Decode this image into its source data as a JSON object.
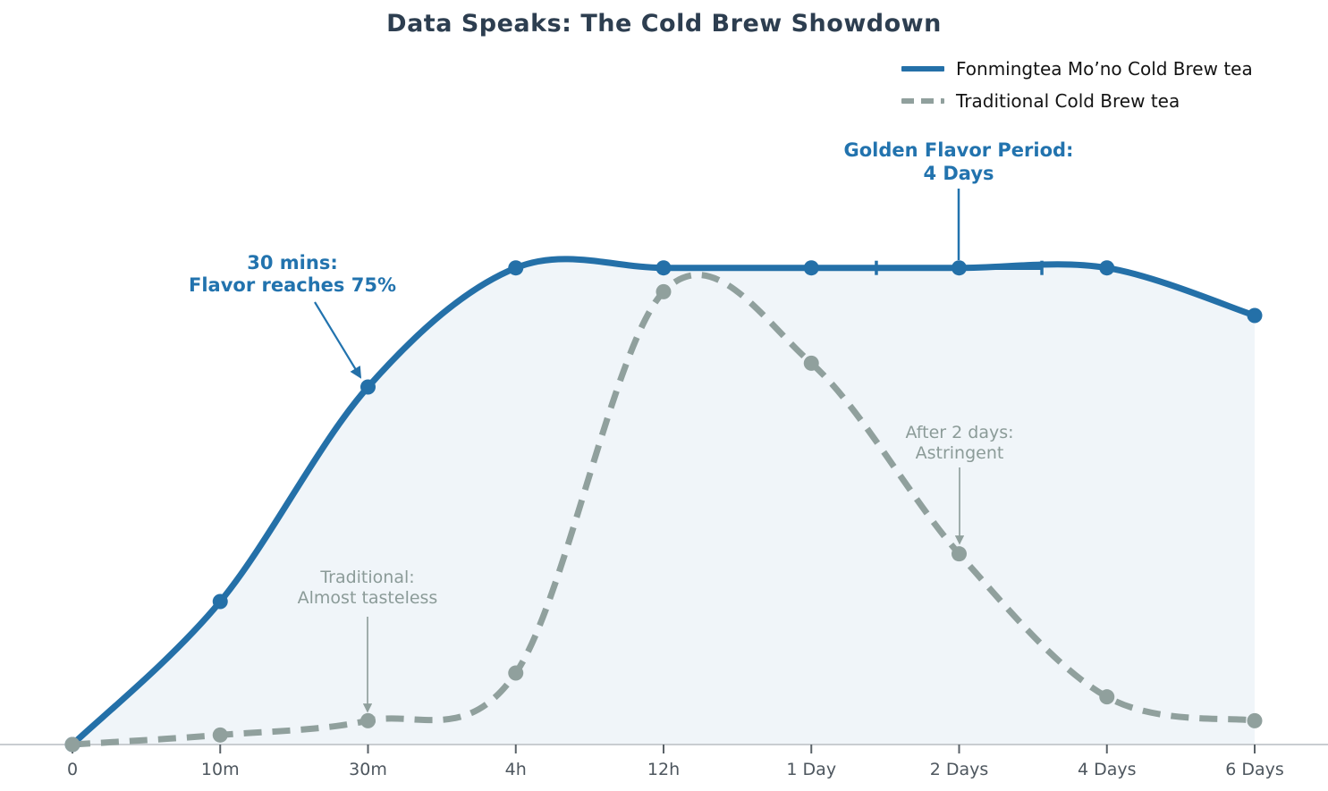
{
  "chart_data": {
    "type": "line",
    "title": "Data Speaks: The Cold Brew Showdown",
    "categories": [
      "0",
      "10m",
      "30m",
      "4h",
      "12h",
      "1 Day",
      "2 Days",
      "4 Days",
      "6 Days"
    ],
    "series": [
      {
        "name": "Fonmingtea Mo’no Cold Brew tea",
        "values": [
          0,
          30,
          75,
          100,
          100,
          100,
          100,
          100,
          90
        ],
        "color": "#2470a8",
        "style": "solid",
        "fill_under": true
      },
      {
        "name": "Traditional Cold Brew tea",
        "values": [
          0,
          2,
          5,
          15,
          95,
          80,
          40,
          10,
          5
        ],
        "color": "#90a09d",
        "style": "dashed",
        "fill_under": false
      }
    ],
    "xlabel": "",
    "ylabel": "",
    "ylim": [
      0,
      110
    ],
    "grid": false,
    "legend_position": "top-right",
    "annotations": [
      {
        "id": "thirty-mins",
        "lines": [
          "30 mins:",
          "Flavor reaches 75%"
        ],
        "color": "#2273ae",
        "bold": true,
        "target": {
          "series": 0,
          "category": "30m"
        }
      },
      {
        "id": "golden-period",
        "lines": [
          "Golden Flavor Period:",
          "4 Days"
        ],
        "color": "#2273ae",
        "bold": true,
        "target": {
          "series": 0,
          "category": "2 Days"
        }
      },
      {
        "id": "traditional-tasteless",
        "lines": [
          "Traditional:",
          "Almost tasteless"
        ],
        "color": "#8b9b98",
        "bold": false,
        "target": {
          "series": 1,
          "category": "30m"
        }
      },
      {
        "id": "after-2-days",
        "lines": [
          "After 2 days:",
          "Astringent"
        ],
        "color": "#8b9b98",
        "bold": false,
        "target": {
          "series": 1,
          "category": "2 Days"
        }
      }
    ],
    "golden_span": {
      "center_category": "2 Days",
      "half_width_categories": 0.56,
      "value": 100
    }
  },
  "colors": {
    "title": "#2d3e50",
    "axis_line": "#c9cdd1",
    "tick": "#5a6268",
    "tick_label": "#4d565e",
    "fill_under_main": "rgba(36,112,168,0.07)"
  }
}
